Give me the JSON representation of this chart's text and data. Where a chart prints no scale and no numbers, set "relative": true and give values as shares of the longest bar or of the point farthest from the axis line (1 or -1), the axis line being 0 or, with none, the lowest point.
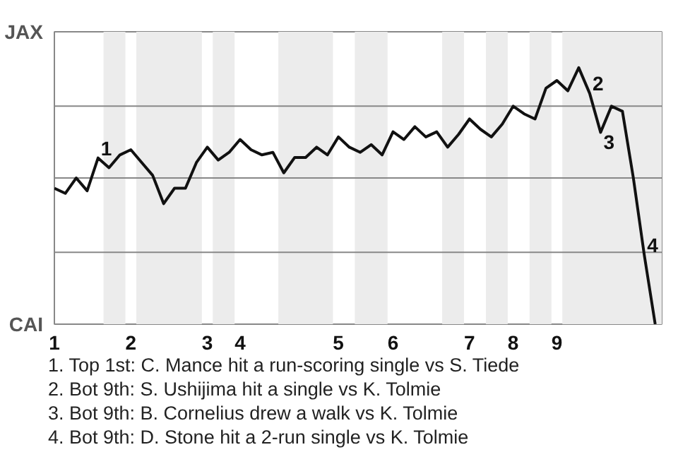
{
  "chart_data": {
    "type": "line",
    "relative": true,
    "categories": [
      "1",
      null,
      null,
      null,
      null,
      null,
      null,
      "2",
      null,
      null,
      null,
      null,
      null,
      null,
      "3",
      null,
      null,
      "4",
      null,
      null,
      null,
      null,
      null,
      null,
      null,
      null,
      "5",
      null,
      null,
      null,
      null,
      "6",
      null,
      null,
      null,
      null,
      null,
      null,
      "7",
      null,
      null,
      null,
      "8",
      null,
      null,
      null,
      "9",
      null,
      null,
      null,
      null,
      null,
      null,
      null,
      null,
      null
    ],
    "series": [
      {
        "color": "#111111",
        "values": [
          0.53,
          0.51,
          0.57,
          0.52,
          0.648,
          0.61,
          0.66,
          0.68,
          0.63,
          0.58,
          0.47,
          0.53,
          0.53,
          0.63,
          0.69,
          0.64,
          0.67,
          0.72,
          0.68,
          0.66,
          0.67,
          0.59,
          0.65,
          0.65,
          0.69,
          0.66,
          0.73,
          0.69,
          0.67,
          0.7,
          0.66,
          0.75,
          0.72,
          0.77,
          0.73,
          0.75,
          0.69,
          0.74,
          0.8,
          0.76,
          0.73,
          0.78,
          0.85,
          0.82,
          0.8,
          0.92,
          0.95,
          0.91,
          1.0,
          0.9,
          0.748,
          0.85,
          0.83,
          0.57,
          0.27,
          0.0
        ]
      }
    ],
    "grid": false,
    "marker": "none",
    "line_style": "solid",
    "ref_lines": [
      {
        "axis": "y",
        "value": 0.28,
        "color": "#888888"
      },
      {
        "axis": "y",
        "value": 0.57,
        "color": "#888888"
      },
      {
        "axis": "y",
        "value": 0.85,
        "color": "#888888"
      }
    ],
    "annotations": [
      "JAX",
      "CAI",
      {
        "text": "1",
        "y": 0.648
      },
      {
        "text": "2",
        "y": 0.9
      },
      {
        "text": "3",
        "y": 0.748
      },
      {
        "text": "4",
        "y": 0.27
      },
      "1. Top 1st: C. Mance hit a run-scoring single vs S. Tiede",
      "2. Bot 9th: S. Ushijima hit a single vs K. Tolmie",
      "3. Bot 9th: B. Cornelius drew a walk vs K. Tolmie",
      "4. Bot 9th: D. Stone hit a 2-run single vs K. Tolmie"
    ]
  }
}
